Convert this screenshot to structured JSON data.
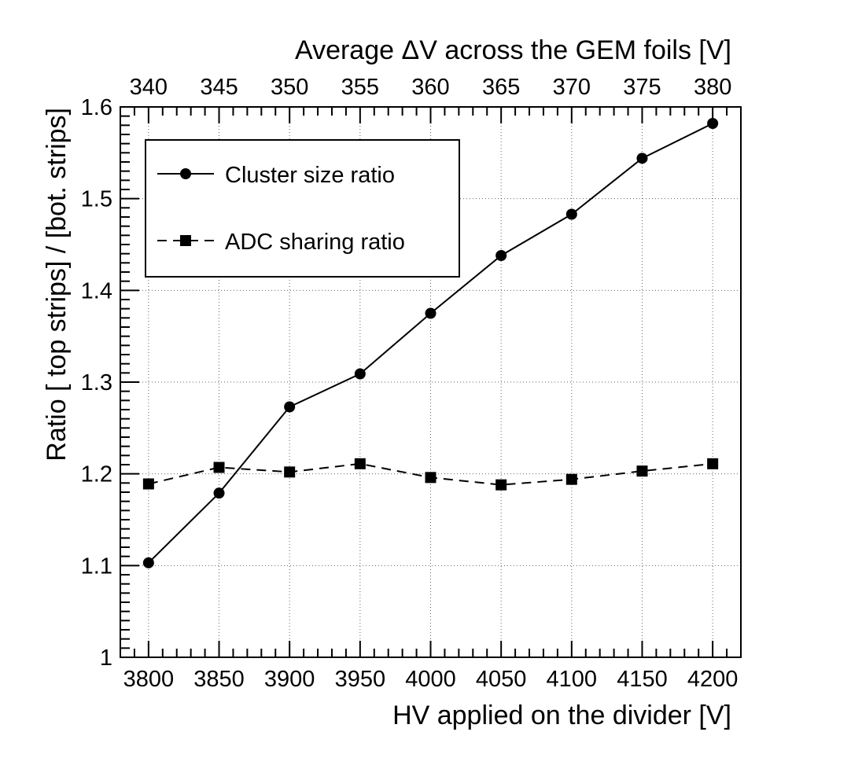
{
  "chart_data": {
    "type": "line",
    "bottom_axis_label": "HV applied on the divider [V]",
    "top_axis_label": "Average ΔV across the GEM foils [V]",
    "ylabel": "Ratio [ top strips] / [bot. strips]",
    "xlim": [
      3780,
      4220
    ],
    "ylim": [
      1.0,
      1.6
    ],
    "grid": true,
    "bottom_ticks": [
      "3800",
      "3850",
      "3900",
      "3950",
      "4000",
      "4050",
      "4100",
      "4150",
      "4200"
    ],
    "top_ticks": [
      "340",
      "345",
      "350",
      "355",
      "360",
      "365",
      "370",
      "375",
      "380"
    ],
    "y_ticks": [
      "1",
      "1.1",
      "1.2",
      "1.3",
      "1.4",
      "1.5",
      "1.6"
    ],
    "x": [
      3800,
      3850,
      3900,
      3950,
      4000,
      4050,
      4100,
      4150,
      4200
    ],
    "series": [
      {
        "name": "Cluster size ratio",
        "marker": "circle",
        "line": "solid",
        "values": [
          1.103,
          1.179,
          1.273,
          1.309,
          1.375,
          1.438,
          1.483,
          1.544,
          1.582
        ]
      },
      {
        "name": "ADC sharing ratio",
        "marker": "square",
        "line": "dashed",
        "values": [
          1.189,
          1.207,
          1.202,
          1.211,
          1.196,
          1.188,
          1.194,
          1.203,
          1.211
        ]
      }
    ],
    "legend_position": "top-left",
    "color": "#000000"
  }
}
